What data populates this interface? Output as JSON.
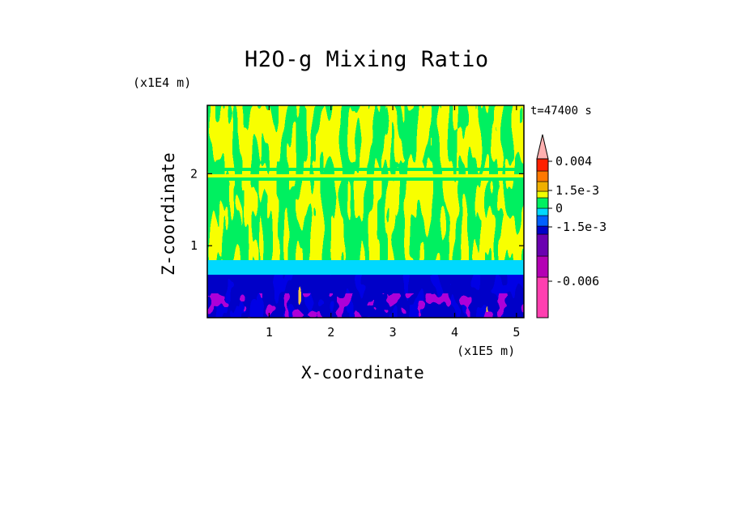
{
  "chart_data": {
    "type": "heatmap",
    "title": "H2O-g Mixing Ratio",
    "xlabel": "X-coordinate",
    "ylabel": "Z-coordinate",
    "x_scale_label": "(x1E5 m)",
    "z_scale_label": "(x1E4 m)",
    "time_label": "t=47400 s",
    "xlim": [
      0,
      5.12
    ],
    "ylim": [
      0,
      2.95
    ],
    "x_ticks": [
      {
        "value": 1,
        "label": "1"
      },
      {
        "value": 2,
        "label": "2"
      },
      {
        "value": 3,
        "label": "3"
      },
      {
        "value": 4,
        "label": "4"
      },
      {
        "value": 5,
        "label": "5"
      }
    ],
    "y_ticks": [
      {
        "value": 1,
        "label": "1"
      },
      {
        "value": 2,
        "label": "2"
      }
    ],
    "colorbar": {
      "colors": [
        "#ff3fb0",
        "#b400b4",
        "#6a00b0",
        "#0000c8",
        "#0060ff",
        "#00d8ff",
        "#00f060",
        "#f0ff00",
        "#f0b000",
        "#ff7800",
        "#ff2000",
        "#ff8080",
        "#ffb0b0"
      ],
      "labels": [
        {
          "value": 0.004,
          "text": "0.004"
        },
        {
          "value": 0.0015,
          "text": "1.5e-3"
        },
        {
          "value": 0,
          "text": "0"
        },
        {
          "value": -0.0015,
          "text": "-1.5e-3"
        },
        {
          "value": -0.006,
          "text": "-0.006"
        }
      ]
    }
  }
}
